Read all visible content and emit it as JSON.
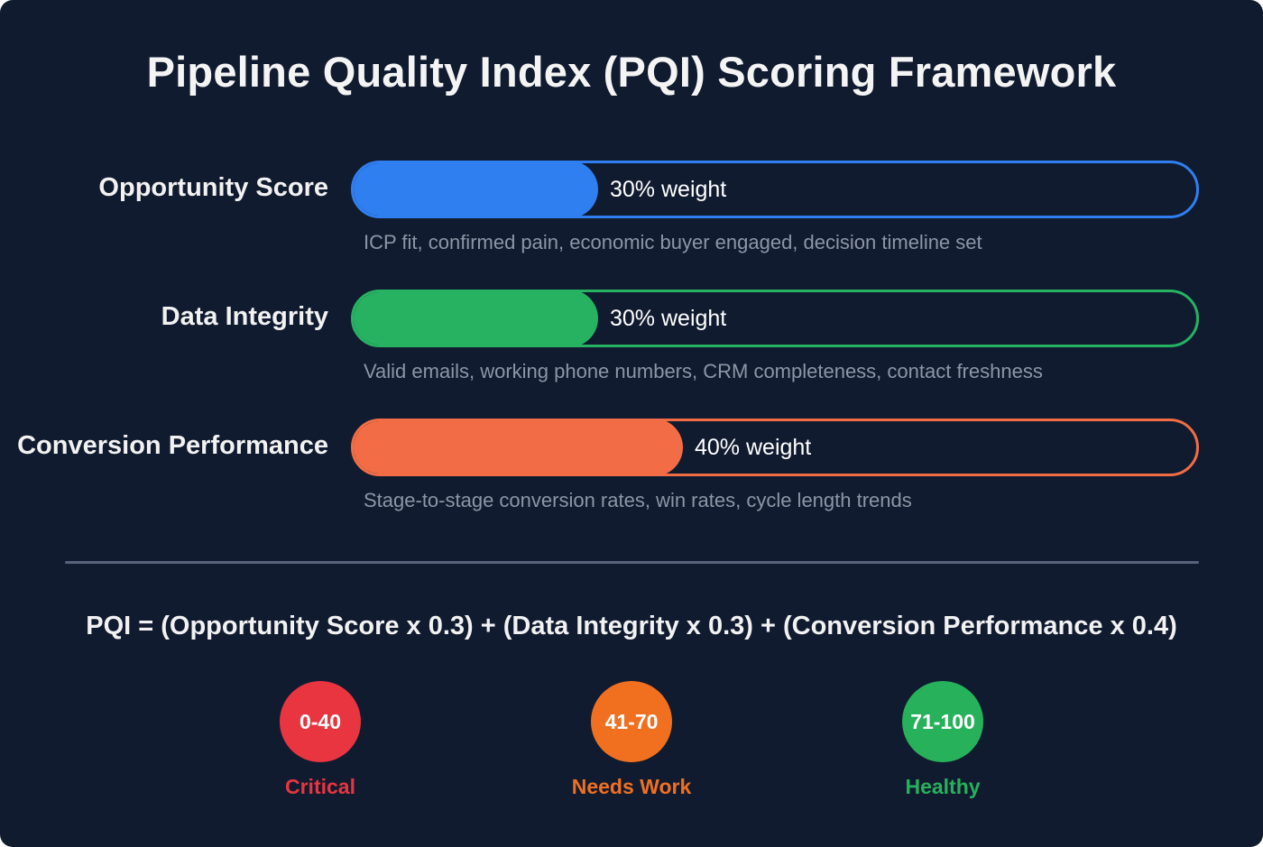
{
  "title": "Pipeline Quality Index (PQI) Scoring Framework",
  "components": [
    {
      "label": "Opportunity Score",
      "weight_pct": 30,
      "weight_label": "30% weight",
      "description": "ICP fit, confirmed pain, economic buyer engaged, decision timeline set",
      "color": "#2f7ff0"
    },
    {
      "label": "Data Integrity",
      "weight_pct": 30,
      "weight_label": "30% weight",
      "description": "Valid emails, working phone numbers, CRM completeness, contact freshness",
      "color": "#27b262"
    },
    {
      "label": "Conversion Performance",
      "weight_pct": 40,
      "weight_label": "40% weight",
      "description": "Stage-to-stage conversion rates, win rates, cycle length trends",
      "color": "#f26d45"
    }
  ],
  "formula": "PQI = (Opportunity Score x 0.3) + (Data Integrity x 0.3) + (Conversion Performance x 0.4)",
  "tiers": [
    {
      "range": "0-40",
      "label": "Critical",
      "color": "#e8353f"
    },
    {
      "range": "41-70",
      "label": "Needs Work",
      "color": "#f07020"
    },
    {
      "range": "71-100",
      "label": "Healthy",
      "color": "#26b15a"
    }
  ]
}
